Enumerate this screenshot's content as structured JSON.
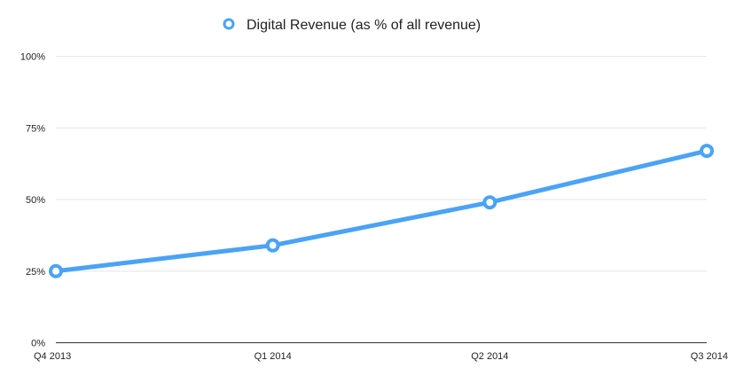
{
  "chart_data": {
    "type": "line",
    "categories": [
      "Q4 2013",
      "Q1 2014",
      "Q2 2014",
      "Q3 2014"
    ],
    "series": [
      {
        "name": "Digital Revenue (as % of all revenue)",
        "values": [
          25,
          34,
          49,
          67
        ],
        "color": "#4aa3f5"
      }
    ],
    "ylim": [
      0,
      100
    ],
    "yticks": [
      {
        "value": 0,
        "label": "0%"
      },
      {
        "value": 25,
        "label": "25%"
      },
      {
        "value": 50,
        "label": "50%"
      },
      {
        "value": 75,
        "label": "75%"
      },
      {
        "value": 100,
        "label": "100%"
      }
    ],
    "grid": true,
    "legend": "top-center",
    "title": "",
    "xlabel": "",
    "ylabel": ""
  }
}
